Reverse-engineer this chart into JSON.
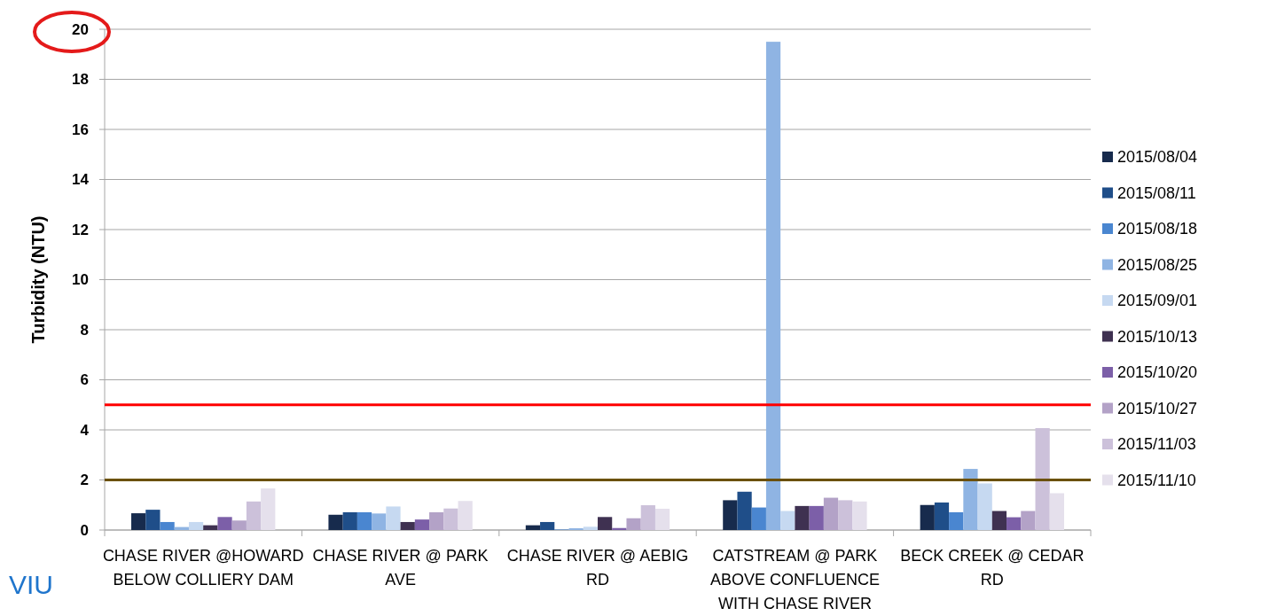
{
  "chart_data": {
    "type": "bar",
    "ylabel": "Turbidity (NTU)",
    "categories": [
      "CHASE RIVER @HOWARD BELOW COLLIERY DAM",
      "CHASE RIVER @ PARK AVE",
      "CHASE RIVER @ AEBIG RD",
      "CATSTREAM @ PARK ABOVE CONFLUENCE WITH CHASE RIVER",
      "BECK CREEK @ CEDAR RD"
    ],
    "series": [
      {
        "name": "2015/08/04",
        "color": "#172b4d",
        "values": [
          0.67,
          0.61,
          0.19,
          1.19,
          1.0
        ]
      },
      {
        "name": "2015/08/11",
        "color": "#1f4e89",
        "values": [
          0.81,
          0.71,
          0.32,
          1.53,
          1.1
        ]
      },
      {
        "name": "2015/08/18",
        "color": "#4a86d0",
        "values": [
          0.32,
          0.71,
          0.02,
          0.9,
          0.71
        ]
      },
      {
        "name": "2015/08/25",
        "color": "#8fb4e3",
        "values": [
          0.12,
          0.66,
          0.07,
          19.5,
          2.44
        ]
      },
      {
        "name": "2015/09/01",
        "color": "#c6d9f1",
        "values": [
          0.32,
          0.94,
          0.13,
          0.76,
          1.86
        ]
      },
      {
        "name": "2015/10/13",
        "color": "#3f3151",
        "values": [
          0.19,
          0.32,
          0.52,
          0.96,
          0.76
        ]
      },
      {
        "name": "2015/10/20",
        "color": "#7c5fa8",
        "values": [
          0.52,
          0.42,
          0.08,
          0.96,
          0.51
        ]
      },
      {
        "name": "2015/10/27",
        "color": "#b3a2c7",
        "values": [
          0.38,
          0.71,
          0.47,
          1.29,
          0.76
        ]
      },
      {
        "name": "2015/11/03",
        "color": "#ccc1da",
        "values": [
          1.14,
          0.86,
          0.99,
          1.19,
          4.07
        ]
      },
      {
        "name": "2015/11/10",
        "color": "#e5e0ec",
        "values": [
          1.66,
          1.16,
          0.85,
          1.14,
          1.47
        ]
      }
    ],
    "ylim": [
      0,
      20
    ],
    "yticks": [
      0,
      2,
      4,
      6,
      8,
      10,
      12,
      14,
      16,
      18,
      20
    ],
    "grid": "y",
    "legend": "right",
    "ref_lines": [
      {
        "axis": "y",
        "value": 5,
        "color": "#ff0000"
      },
      {
        "axis": "y",
        "value": 2,
        "color": "#6b5000"
      }
    ],
    "annotations": [
      "VIU"
    ]
  }
}
